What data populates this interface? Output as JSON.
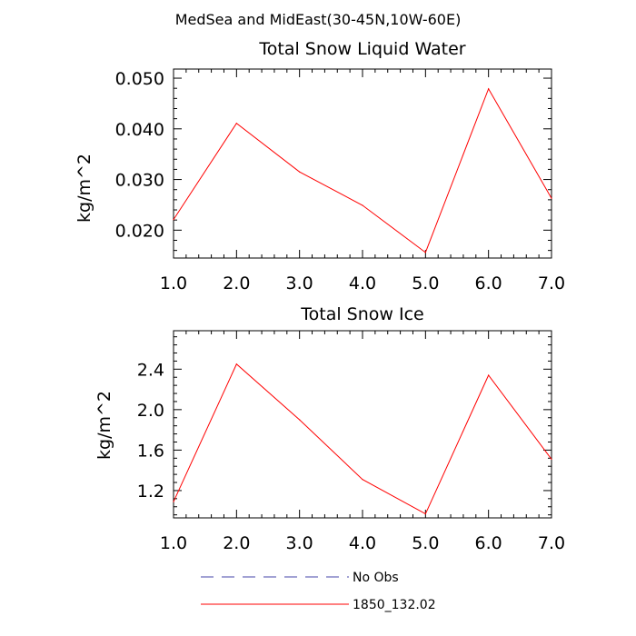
{
  "suptitle": "MedSea and MidEast(30-45N,10W-60E)",
  "colors": {
    "series": "#ff0000",
    "no_obs": "#4444aa",
    "axis": "#000000"
  },
  "legend": {
    "items": [
      {
        "label": "No Obs",
        "style": "dashed",
        "color": "#4444aa"
      },
      {
        "label": "1850_132.02",
        "style": "solid",
        "color": "#ff0000"
      }
    ]
  },
  "chart_data": [
    {
      "type": "line",
      "title": "Total Snow Liquid Water",
      "xlabel": "",
      "ylabel": "kg/m^2",
      "x": [
        1,
        2,
        3,
        4,
        5,
        6,
        7
      ],
      "xticks": [
        "1.0",
        "2.0",
        "3.0",
        "4.0",
        "5.0",
        "6.0",
        "7.0"
      ],
      "xlim": [
        1,
        7
      ],
      "ylim": [
        0.0145,
        0.0518
      ],
      "yticks": [
        "0.020",
        "0.030",
        "0.040",
        "0.050"
      ],
      "ytick_values": [
        0.02,
        0.03,
        0.04,
        0.05
      ],
      "series": [
        {
          "name": "1850_132.02",
          "values": [
            0.0221,
            0.0411,
            0.0315,
            0.0249,
            0.0156,
            0.0479,
            0.0263
          ]
        }
      ]
    },
    {
      "type": "line",
      "title": "Total Snow Ice",
      "xlabel": "",
      "ylabel": "kg/m^2",
      "x": [
        1,
        2,
        3,
        4,
        5,
        6,
        7
      ],
      "xticks": [
        "1.0",
        "2.0",
        "3.0",
        "4.0",
        "5.0",
        "6.0",
        "7.0"
      ],
      "xlim": [
        1,
        7
      ],
      "ylim": [
        0.93,
        2.78
      ],
      "yticks": [
        "1.2",
        "1.6",
        "2.0",
        "2.4"
      ],
      "ytick_values": [
        1.2,
        1.6,
        2.0,
        2.4
      ],
      "series": [
        {
          "name": "1850_132.02",
          "values": [
            1.09,
            2.45,
            1.9,
            1.31,
            0.97,
            2.34,
            1.51
          ]
        }
      ]
    }
  ]
}
